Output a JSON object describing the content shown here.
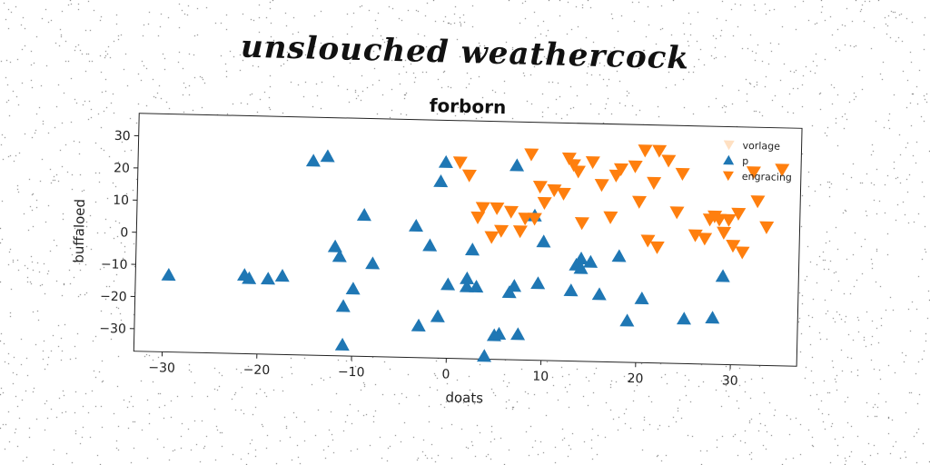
{
  "suptitle": "unslouched weathercock",
  "colors": {
    "p": "#1f77b4",
    "engracing": "#ff7f0e",
    "vorlage": "#ffe0c2"
  },
  "chart_data": {
    "type": "scatter",
    "title": "forborn",
    "xlabel": "doats",
    "ylabel": "buffaloed",
    "xlim": [
      -33,
      37
    ],
    "ylim": [
      -37,
      37
    ],
    "xticks": [
      -30,
      -20,
      -10,
      0,
      10,
      20,
      30
    ],
    "yticks": [
      -30,
      -20,
      -10,
      0,
      10,
      20,
      30
    ],
    "grid": false,
    "legend_position": "top-right",
    "series": [
      {
        "name": "vorlage",
        "marker": "triangle-down",
        "color": "#ffe0c2",
        "points": []
      },
      {
        "name": "p",
        "marker": "triangle-up",
        "color": "#1f77b4",
        "points": [
          [
            -29.5,
            -13
          ],
          [
            -21.5,
            -12.5
          ],
          [
            -21,
            -13.5
          ],
          [
            -19,
            -13.5
          ],
          [
            -17.5,
            -12.5
          ],
          [
            -14.5,
            23.5
          ],
          [
            -13,
            25
          ],
          [
            -12,
            -3
          ],
          [
            -11.5,
            -6
          ],
          [
            -11,
            -21.5
          ],
          [
            -11,
            -33.5
          ],
          [
            -10,
            -16
          ],
          [
            -9,
            7
          ],
          [
            -8,
            -8
          ],
          [
            -3.5,
            4
          ],
          [
            -3,
            -27
          ],
          [
            -2,
            -2
          ],
          [
            -1,
            -24
          ],
          [
            -1,
            18
          ],
          [
            -0.5,
            24
          ],
          [
            0,
            -14
          ],
          [
            2,
            -12
          ],
          [
            2,
            -14.5
          ],
          [
            2.5,
            -3
          ],
          [
            3,
            -14.5
          ],
          [
            4,
            -36
          ],
          [
            5,
            -29.5
          ],
          [
            5.5,
            -29
          ],
          [
            6.5,
            -16
          ],
          [
            7,
            -14
          ],
          [
            7,
            23.5
          ],
          [
            7.5,
            -29
          ],
          [
            9,
            8
          ],
          [
            9.5,
            -13
          ],
          [
            10,
            0
          ],
          [
            13,
            -15
          ],
          [
            13.5,
            -7
          ],
          [
            14,
            -5
          ],
          [
            14,
            -8
          ],
          [
            15,
            -6
          ],
          [
            16,
            -16
          ],
          [
            18,
            -4
          ],
          [
            19,
            -24
          ],
          [
            20.5,
            -17
          ],
          [
            25,
            -23
          ],
          [
            28,
            -22.5
          ],
          [
            29,
            -9.5
          ]
        ]
      },
      {
        "name": "engracing",
        "marker": "triangle-down",
        "color": "#ff7f0e",
        "points": [
          [
            1,
            24
          ],
          [
            2,
            20
          ],
          [
            3,
            7
          ],
          [
            3.5,
            10
          ],
          [
            4.5,
            1
          ],
          [
            5,
            10
          ],
          [
            5.5,
            3
          ],
          [
            6.5,
            9
          ],
          [
            7.5,
            3
          ],
          [
            8,
            7
          ],
          [
            8.5,
            27
          ],
          [
            9,
            7
          ],
          [
            9.5,
            17
          ],
          [
            10,
            12
          ],
          [
            11,
            16
          ],
          [
            12,
            15
          ],
          [
            12.5,
            26
          ],
          [
            13,
            24
          ],
          [
            13.5,
            22
          ],
          [
            14,
            6
          ],
          [
            15,
            25
          ],
          [
            16,
            18
          ],
          [
            17,
            8
          ],
          [
            17.5,
            21
          ],
          [
            18,
            23
          ],
          [
            19.5,
            24
          ],
          [
            20,
            13
          ],
          [
            20.5,
            29
          ],
          [
            21,
            1
          ],
          [
            21.5,
            19
          ],
          [
            22,
            -1
          ],
          [
            22,
            29
          ],
          [
            23,
            26
          ],
          [
            24,
            10
          ],
          [
            24.5,
            22
          ],
          [
            26,
            3
          ],
          [
            27,
            2
          ],
          [
            27.5,
            8
          ],
          [
            28,
            9
          ],
          [
            28.5,
            8
          ],
          [
            29,
            4
          ],
          [
            29.5,
            8
          ],
          [
            30,
            0
          ],
          [
            30.5,
            10
          ],
          [
            31,
            -2
          ],
          [
            32,
            23
          ],
          [
            32.5,
            14
          ],
          [
            33.5,
            6
          ],
          [
            35,
            24
          ]
        ]
      }
    ]
  }
}
